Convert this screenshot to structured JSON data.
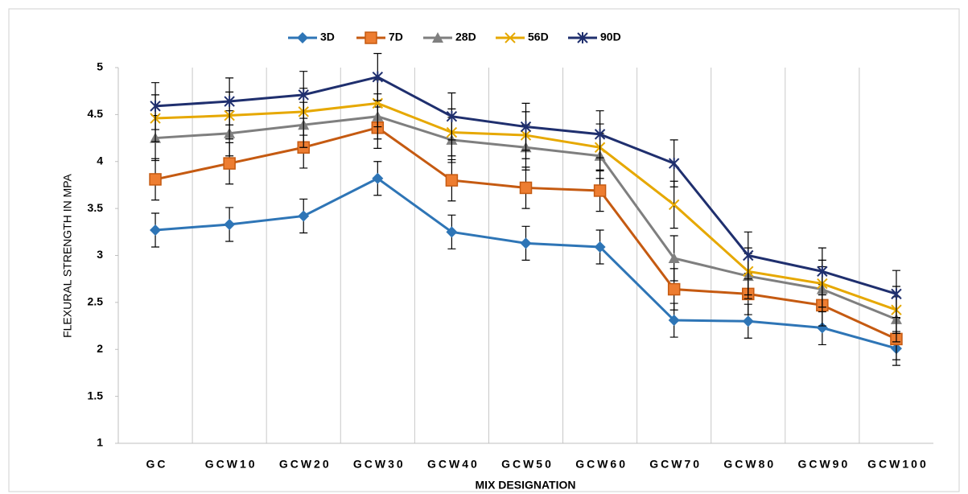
{
  "chart_data": {
    "type": "line",
    "x_label": "MIX DESIGNATION",
    "y_label": "FLEXURAL STRENGTH IN MPA",
    "categories": [
      "GC",
      "GCW10",
      "GCW20",
      "GCW30",
      "GCW40",
      "GCW50",
      "GCW60",
      "GCW70",
      "GCW80",
      "GCW90",
      "GCW100"
    ],
    "ylim": [
      1,
      5
    ],
    "yticks": [
      1,
      1.5,
      2,
      2.5,
      3,
      3.5,
      4,
      4.5,
      5
    ],
    "grid": "vertical",
    "legend": "top",
    "series": [
      {
        "name": "3D",
        "color": "#2e75b6",
        "marker": "diamond",
        "error": 0.18,
        "values": [
          3.27,
          3.33,
          3.42,
          3.82,
          3.25,
          3.13,
          3.09,
          2.31,
          2.3,
          2.23,
          2.01
        ]
      },
      {
        "name": "7D",
        "color": "#c55a11",
        "marker": "square",
        "error": 0.22,
        "values": [
          3.81,
          3.98,
          4.15,
          4.36,
          3.8,
          3.72,
          3.69,
          2.64,
          2.59,
          2.47,
          2.11
        ]
      },
      {
        "name": "28D",
        "color": "#7f7f7f",
        "marker": "triangle",
        "error": 0.24,
        "values": [
          4.25,
          4.3,
          4.39,
          4.48,
          4.23,
          4.15,
          4.06,
          2.97,
          2.78,
          2.64,
          2.32
        ]
      },
      {
        "name": "56D",
        "color": "#e6a800",
        "marker": "x",
        "error": 0.25,
        "values": [
          4.46,
          4.49,
          4.53,
          4.62,
          4.31,
          4.28,
          4.15,
          3.54,
          2.83,
          2.7,
          2.42
        ]
      },
      {
        "name": "90D",
        "color": "#1f2f6e",
        "marker": "star",
        "error": 0.25,
        "values": [
          4.59,
          4.64,
          4.71,
          4.9,
          4.48,
          4.37,
          4.29,
          3.98,
          3.0,
          2.83,
          2.59
        ]
      }
    ]
  }
}
